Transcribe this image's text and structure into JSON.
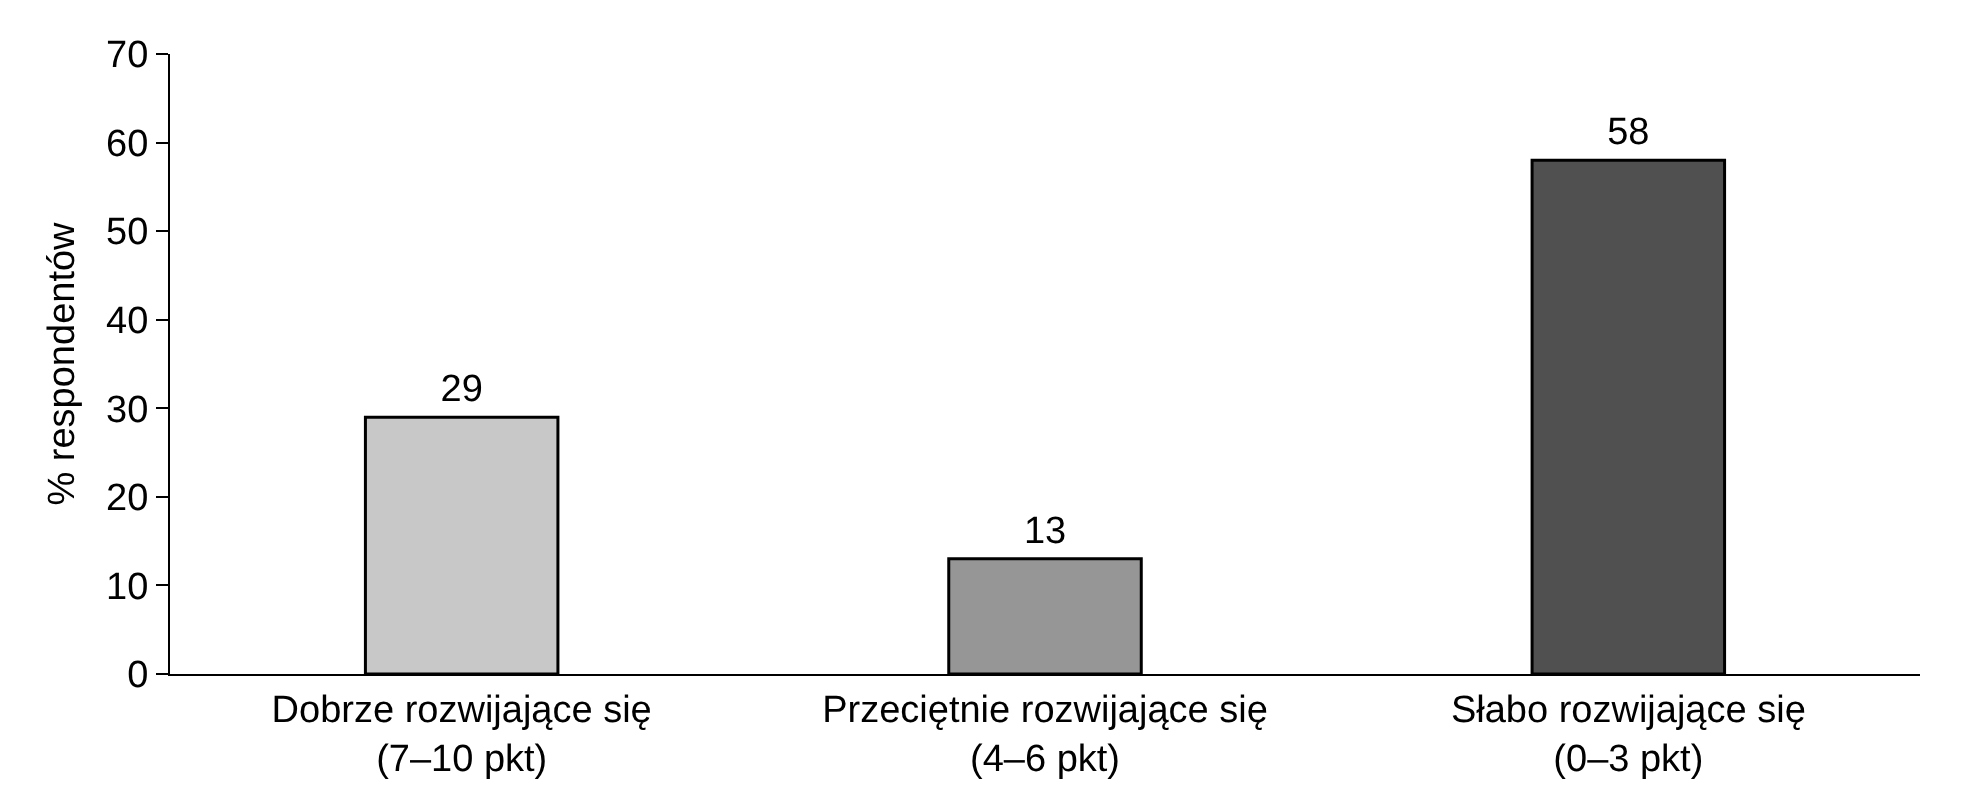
{
  "chart_data": {
    "type": "bar",
    "ylabel": "% respondentów",
    "categories": [
      "Dobrze rozwijające się\n(7–10 pkt)",
      "Przeciętnie rozwijające się\n(4–6 pkt)",
      "Słabo rozwijające się\n(0–3 pkt)"
    ],
    "values": [
      29,
      13,
      58
    ],
    "colors": [
      "#c8c8c8",
      "#969696",
      "#505050"
    ],
    "ylim": [
      0,
      70
    ],
    "yticks": [
      0,
      10,
      20,
      30,
      40,
      50,
      60,
      70
    ],
    "grid": false,
    "data_labels": true
  }
}
